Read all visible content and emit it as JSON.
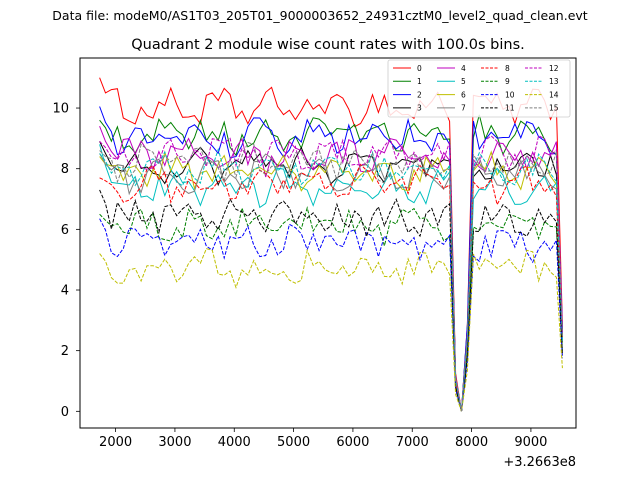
{
  "chart_data": {
    "type": "line",
    "suptitle": "Data file: modeM0/AS1T03_205T01_9000003652_24931cztM0_level2_quad_clean.evt",
    "title": "Quadrant 2 module wise count rates with 100.0s bins.",
    "xlabel": "",
    "ylabel": "",
    "x_offset_label": "+3.2663e8",
    "xlim": [
      1400,
      9760
    ],
    "ylim": [
      -0.55,
      11.65
    ],
    "x_ticks": [
      2000,
      3000,
      4000,
      5000,
      6000,
      7000,
      8000,
      9000
    ],
    "x_tick_labels": [
      "2000",
      "3000",
      "4000",
      "5000",
      "6000",
      "7000",
      "8000",
      "9000"
    ],
    "y_ticks": [
      0,
      2,
      4,
      6,
      8,
      10
    ],
    "y_tick_labels": [
      "0",
      "2",
      "4",
      "6",
      "8",
      "10"
    ],
    "grid": false,
    "legend_position": "top-right",
    "x_start": 1730,
    "x_step": 100,
    "n_points": 79,
    "dips": [
      {
        "x": 7730,
        "frac": 0.13
      },
      {
        "x": 7830,
        "frac": 0.0
      },
      {
        "x": 7930,
        "frac": 0.3
      },
      {
        "x": 8030,
        "frac": 1.0
      },
      {
        "x": 9530,
        "frac": 0.3
      }
    ],
    "series": [
      {
        "name": "0",
        "color": "#ff0000",
        "dash": "solid",
        "base": 10.0,
        "start": 11.0
      },
      {
        "name": "1",
        "color": "#008000",
        "dash": "solid",
        "base": 9.1,
        "start": 9.6
      },
      {
        "name": "2",
        "color": "#0000ff",
        "dash": "solid",
        "base": 9.0,
        "start": 10.05
      },
      {
        "name": "3",
        "color": "#000000",
        "dash": "solid",
        "base": 8.1,
        "start": 8.9
      },
      {
        "name": "4",
        "color": "#bf00bf",
        "dash": "solid",
        "base": 8.4,
        "start": 9.4
      },
      {
        "name": "5",
        "color": "#00bfbf",
        "dash": "solid",
        "base": 7.4,
        "start": 8.8
      },
      {
        "name": "6",
        "color": "#bfbf00",
        "dash": "solid",
        "base": 7.9,
        "start": 8.4
      },
      {
        "name": "7",
        "color": "#808080",
        "dash": "solid",
        "base": 7.8,
        "start": 8.5
      },
      {
        "name": "8",
        "color": "#ff0000",
        "dash": "dashed",
        "base": 7.5,
        "start": 7.7
      },
      {
        "name": "9",
        "color": "#008000",
        "dash": "dashed",
        "base": 6.1,
        "start": 6.5
      },
      {
        "name": "10",
        "color": "#0000ff",
        "dash": "dashed",
        "base": 5.6,
        "start": 6.35
      },
      {
        "name": "11",
        "color": "#000000",
        "dash": "dashed",
        "base": 6.4,
        "start": 7.3
      },
      {
        "name": "12",
        "color": "#bf00bf",
        "dash": "dashed",
        "base": 8.5,
        "start": 8.9
      },
      {
        "name": "13",
        "color": "#00bfbf",
        "dash": "dashed",
        "base": 8.0,
        "start": 8.5
      },
      {
        "name": "14",
        "color": "#bfbf00",
        "dash": "dashed",
        "base": 4.7,
        "start": 5.2
      },
      {
        "name": "15",
        "color": "#808080",
        "dash": "dashed",
        "base": 8.2,
        "start": 8.6
      }
    ]
  }
}
